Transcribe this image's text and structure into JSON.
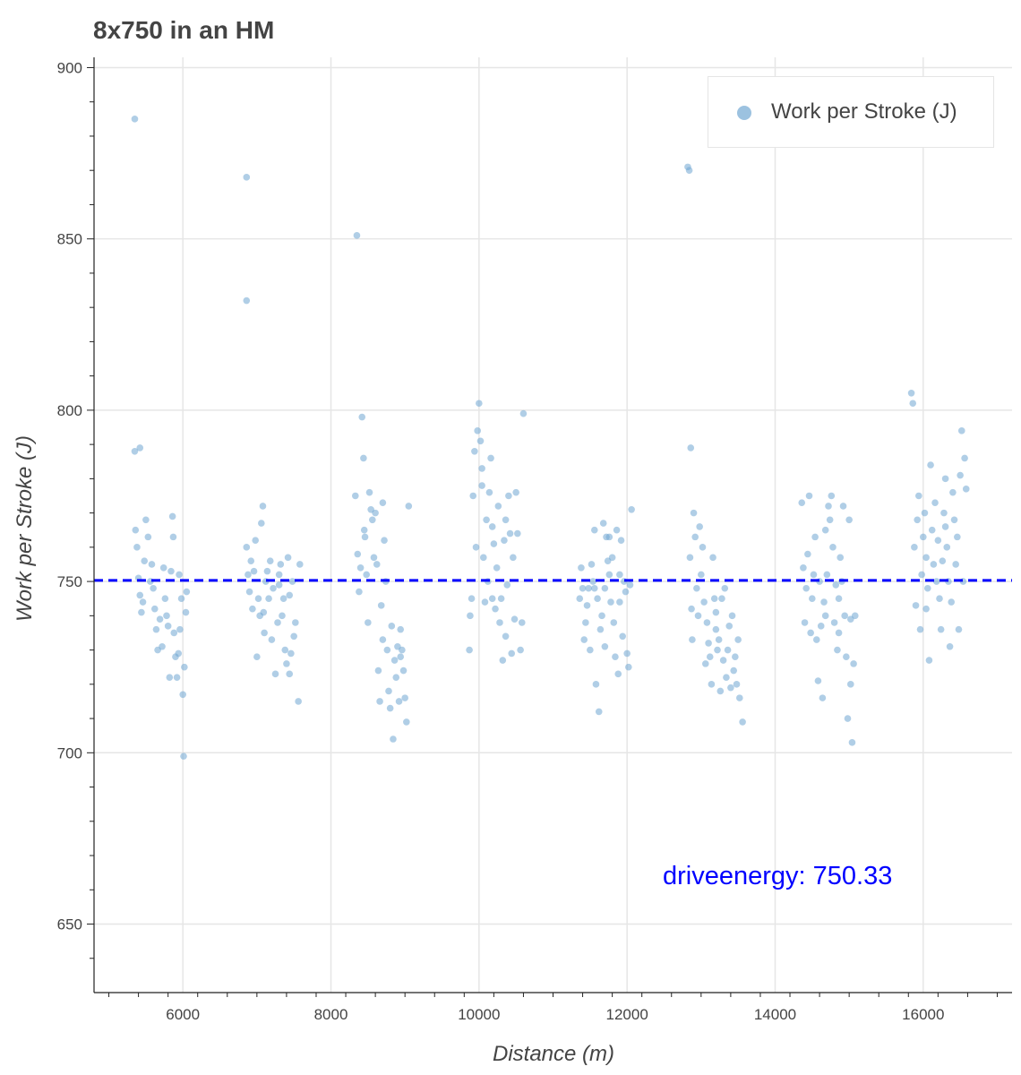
{
  "chart_data": {
    "type": "scatter",
    "title": "8x750 in an HM",
    "xlabel": "Distance (m)",
    "ylabel": "Work per Stroke (J)",
    "xlim": [
      4800,
      17200
    ],
    "ylim": [
      630,
      903
    ],
    "xticks": [
      6000,
      8000,
      10000,
      12000,
      14000,
      16000
    ],
    "yticks": [
      650,
      700,
      750,
      800,
      850,
      900
    ],
    "grid": true,
    "legend": {
      "position": "top-right",
      "entries": [
        "Work per Stroke (J)"
      ]
    },
    "reference_line": {
      "y": 750.33,
      "style": "dashed",
      "color": "#0000ff"
    },
    "annotation": "driveenergy: 750.33",
    "colors": {
      "points": "#6fa5d2",
      "line": "#0000ff",
      "grid": "#e6e6e6"
    },
    "series": [
      {
        "name": "Work per Stroke (J)",
        "points": [
          [
            5350,
            885
          ],
          [
            5350,
            788
          ],
          [
            5420,
            789
          ],
          [
            5360,
            765
          ],
          [
            5380,
            760
          ],
          [
            5400,
            751
          ],
          [
            5420,
            746
          ],
          [
            5440,
            741
          ],
          [
            5460,
            744
          ],
          [
            5480,
            756
          ],
          [
            5500,
            768
          ],
          [
            5530,
            763
          ],
          [
            5560,
            750
          ],
          [
            5580,
            755
          ],
          [
            5600,
            748
          ],
          [
            5620,
            742
          ],
          [
            5640,
            736
          ],
          [
            5660,
            730
          ],
          [
            5690,
            739
          ],
          [
            5720,
            731
          ],
          [
            5740,
            754
          ],
          [
            5760,
            745
          ],
          [
            5780,
            740
          ],
          [
            5800,
            737
          ],
          [
            5820,
            722
          ],
          [
            5840,
            753
          ],
          [
            5860,
            769
          ],
          [
            5870,
            763
          ],
          [
            5880,
            735
          ],
          [
            5900,
            728
          ],
          [
            5920,
            722
          ],
          [
            5940,
            729
          ],
          [
            5960,
            736
          ],
          [
            5980,
            745
          ],
          [
            6000,
            717
          ],
          [
            6020,
            725
          ],
          [
            6040,
            741
          ],
          [
            6050,
            747
          ],
          [
            6010,
            699
          ],
          [
            5950,
            752
          ],
          [
            6860,
            868
          ],
          [
            6860,
            832
          ],
          [
            6860,
            760
          ],
          [
            6880,
            752
          ],
          [
            6900,
            747
          ],
          [
            6920,
            756
          ],
          [
            6940,
            742
          ],
          [
            6960,
            753
          ],
          [
            6980,
            762
          ],
          [
            7000,
            728
          ],
          [
            7020,
            745
          ],
          [
            7040,
            740
          ],
          [
            7060,
            767
          ],
          [
            7080,
            772
          ],
          [
            7100,
            735
          ],
          [
            7120,
            750
          ],
          [
            7140,
            753
          ],
          [
            7160,
            745
          ],
          [
            7180,
            756
          ],
          [
            7200,
            733
          ],
          [
            7220,
            748
          ],
          [
            7250,
            723
          ],
          [
            7280,
            738
          ],
          [
            7300,
            749
          ],
          [
            7320,
            755
          ],
          [
            7340,
            740
          ],
          [
            7360,
            745
          ],
          [
            7380,
            730
          ],
          [
            7400,
            726
          ],
          [
            7420,
            757
          ],
          [
            7440,
            723
          ],
          [
            7460,
            729
          ],
          [
            7480,
            750
          ],
          [
            7500,
            734
          ],
          [
            7520,
            738
          ],
          [
            7560,
            715
          ],
          [
            7580,
            755
          ],
          [
            7090,
            741
          ],
          [
            7300,
            752
          ],
          [
            7440,
            746
          ],
          [
            8350,
            851
          ],
          [
            8330,
            775
          ],
          [
            8360,
            758
          ],
          [
            8380,
            747
          ],
          [
            8400,
            754
          ],
          [
            8420,
            798
          ],
          [
            8440,
            786
          ],
          [
            8460,
            763
          ],
          [
            8480,
            752
          ],
          [
            8500,
            738
          ],
          [
            8520,
            776
          ],
          [
            8540,
            771
          ],
          [
            8560,
            768
          ],
          [
            8580,
            757
          ],
          [
            8600,
            770
          ],
          [
            8620,
            755
          ],
          [
            8640,
            724
          ],
          [
            8660,
            715
          ],
          [
            8680,
            743
          ],
          [
            8700,
            733
          ],
          [
            8720,
            762
          ],
          [
            8740,
            750
          ],
          [
            8760,
            730
          ],
          [
            8780,
            718
          ],
          [
            8800,
            713
          ],
          [
            8820,
            737
          ],
          [
            8840,
            704
          ],
          [
            8860,
            727
          ],
          [
            8880,
            722
          ],
          [
            8900,
            731
          ],
          [
            8920,
            715
          ],
          [
            8940,
            736
          ],
          [
            8960,
            730
          ],
          [
            8980,
            724
          ],
          [
            9000,
            716
          ],
          [
            9020,
            709
          ],
          [
            9050,
            772
          ],
          [
            8450,
            765
          ],
          [
            8700,
            773
          ],
          [
            8940,
            728
          ],
          [
            9870,
            730
          ],
          [
            9880,
            740
          ],
          [
            9900,
            745
          ],
          [
            9920,
            775
          ],
          [
            9940,
            788
          ],
          [
            9960,
            760
          ],
          [
            9980,
            794
          ],
          [
            10000,
            802
          ],
          [
            10020,
            791
          ],
          [
            10040,
            778
          ],
          [
            10060,
            757
          ],
          [
            10080,
            744
          ],
          [
            10100,
            768
          ],
          [
            10120,
            750
          ],
          [
            10140,
            776
          ],
          [
            10160,
            786
          ],
          [
            10180,
            766
          ],
          [
            10200,
            761
          ],
          [
            10220,
            742
          ],
          [
            10240,
            754
          ],
          [
            10260,
            772
          ],
          [
            10280,
            738
          ],
          [
            10300,
            745
          ],
          [
            10320,
            727
          ],
          [
            10340,
            762
          ],
          [
            10360,
            734
          ],
          [
            10380,
            749
          ],
          [
            10400,
            775
          ],
          [
            10420,
            764
          ],
          [
            10440,
            729
          ],
          [
            10460,
            757
          ],
          [
            10480,
            739
          ],
          [
            10500,
            776
          ],
          [
            10520,
            764
          ],
          [
            10560,
            730
          ],
          [
            10580,
            738
          ],
          [
            10600,
            799
          ],
          [
            10040,
            783
          ],
          [
            10180,
            745
          ],
          [
            10360,
            768
          ],
          [
            11360,
            745
          ],
          [
            11380,
            754
          ],
          [
            11400,
            748
          ],
          [
            11420,
            733
          ],
          [
            11440,
            738
          ],
          [
            11460,
            743
          ],
          [
            11480,
            748
          ],
          [
            11500,
            730
          ],
          [
            11520,
            755
          ],
          [
            11540,
            750
          ],
          [
            11560,
            765
          ],
          [
            11580,
            720
          ],
          [
            11600,
            745
          ],
          [
            11620,
            712
          ],
          [
            11640,
            736
          ],
          [
            11660,
            740
          ],
          [
            11680,
            767
          ],
          [
            11700,
            731
          ],
          [
            11720,
            763
          ],
          [
            11740,
            756
          ],
          [
            11760,
            752
          ],
          [
            11780,
            744
          ],
          [
            11800,
            757
          ],
          [
            11820,
            738
          ],
          [
            11840,
            728
          ],
          [
            11860,
            765
          ],
          [
            11880,
            723
          ],
          [
            11900,
            744
          ],
          [
            11920,
            762
          ],
          [
            11940,
            734
          ],
          [
            11960,
            750
          ],
          [
            11980,
            747
          ],
          [
            12000,
            729
          ],
          [
            12020,
            725
          ],
          [
            12040,
            749
          ],
          [
            12060,
            771
          ],
          [
            11700,
            748
          ],
          [
            11900,
            752
          ],
          [
            11560,
            748
          ],
          [
            11760,
            763
          ],
          [
            12820,
            871
          ],
          [
            12840,
            870
          ],
          [
            12860,
            789
          ],
          [
            12850,
            757
          ],
          [
            12870,
            742
          ],
          [
            12880,
            733
          ],
          [
            12900,
            770
          ],
          [
            12920,
            763
          ],
          [
            12940,
            748
          ],
          [
            12960,
            740
          ],
          [
            12980,
            766
          ],
          [
            13000,
            752
          ],
          [
            13020,
            760
          ],
          [
            13040,
            744
          ],
          [
            13060,
            726
          ],
          [
            13080,
            738
          ],
          [
            13100,
            732
          ],
          [
            13120,
            728
          ],
          [
            13140,
            720
          ],
          [
            13160,
            757
          ],
          [
            13180,
            745
          ],
          [
            13200,
            736
          ],
          [
            13220,
            730
          ],
          [
            13240,
            733
          ],
          [
            13260,
            718
          ],
          [
            13280,
            745
          ],
          [
            13300,
            727
          ],
          [
            13320,
            748
          ],
          [
            13340,
            722
          ],
          [
            13360,
            730
          ],
          [
            13380,
            737
          ],
          [
            13400,
            719
          ],
          [
            13420,
            740
          ],
          [
            13440,
            724
          ],
          [
            13460,
            728
          ],
          [
            13480,
            720
          ],
          [
            13500,
            733
          ],
          [
            13520,
            716
          ],
          [
            13560,
            709
          ],
          [
            13200,
            741
          ],
          [
            14360,
            773
          ],
          [
            14380,
            754
          ],
          [
            14400,
            738
          ],
          [
            14420,
            748
          ],
          [
            14440,
            758
          ],
          [
            14460,
            775
          ],
          [
            14480,
            735
          ],
          [
            14500,
            745
          ],
          [
            14520,
            752
          ],
          [
            14540,
            763
          ],
          [
            14560,
            733
          ],
          [
            14580,
            721
          ],
          [
            14600,
            750
          ],
          [
            14620,
            737
          ],
          [
            14640,
            716
          ],
          [
            14660,
            744
          ],
          [
            14680,
            740
          ],
          [
            14700,
            752
          ],
          [
            14720,
            772
          ],
          [
            14740,
            768
          ],
          [
            14760,
            775
          ],
          [
            14780,
            760
          ],
          [
            14800,
            738
          ],
          [
            14820,
            749
          ],
          [
            14840,
            730
          ],
          [
            14860,
            745
          ],
          [
            14880,
            757
          ],
          [
            14900,
            750
          ],
          [
            14920,
            772
          ],
          [
            14940,
            740
          ],
          [
            14960,
            728
          ],
          [
            14980,
            710
          ],
          [
            15000,
            768
          ],
          [
            15020,
            739
          ],
          [
            15040,
            703
          ],
          [
            15060,
            726
          ],
          [
            15080,
            740
          ],
          [
            14680,
            765
          ],
          [
            14860,
            735
          ],
          [
            15020,
            720
          ],
          [
            15840,
            805
          ],
          [
            15860,
            802
          ],
          [
            15880,
            760
          ],
          [
            15900,
            743
          ],
          [
            15920,
            768
          ],
          [
            15940,
            775
          ],
          [
            15960,
            736
          ],
          [
            15980,
            752
          ],
          [
            16000,
            763
          ],
          [
            16020,
            770
          ],
          [
            16040,
            757
          ],
          [
            16060,
            748
          ],
          [
            16080,
            727
          ],
          [
            16100,
            784
          ],
          [
            16120,
            765
          ],
          [
            16140,
            755
          ],
          [
            16160,
            773
          ],
          [
            16180,
            750
          ],
          [
            16200,
            762
          ],
          [
            16220,
            745
          ],
          [
            16240,
            736
          ],
          [
            16260,
            756
          ],
          [
            16280,
            770
          ],
          [
            16300,
            780
          ],
          [
            16320,
            760
          ],
          [
            16340,
            750
          ],
          [
            16360,
            731
          ],
          [
            16380,
            744
          ],
          [
            16400,
            776
          ],
          [
            16420,
            768
          ],
          [
            16440,
            755
          ],
          [
            16460,
            763
          ],
          [
            16480,
            736
          ],
          [
            16500,
            781
          ],
          [
            16520,
            794
          ],
          [
            16540,
            750
          ],
          [
            16560,
            786
          ],
          [
            16580,
            777
          ],
          [
            16040,
            742
          ],
          [
            16300,
            766
          ]
        ]
      }
    ]
  }
}
